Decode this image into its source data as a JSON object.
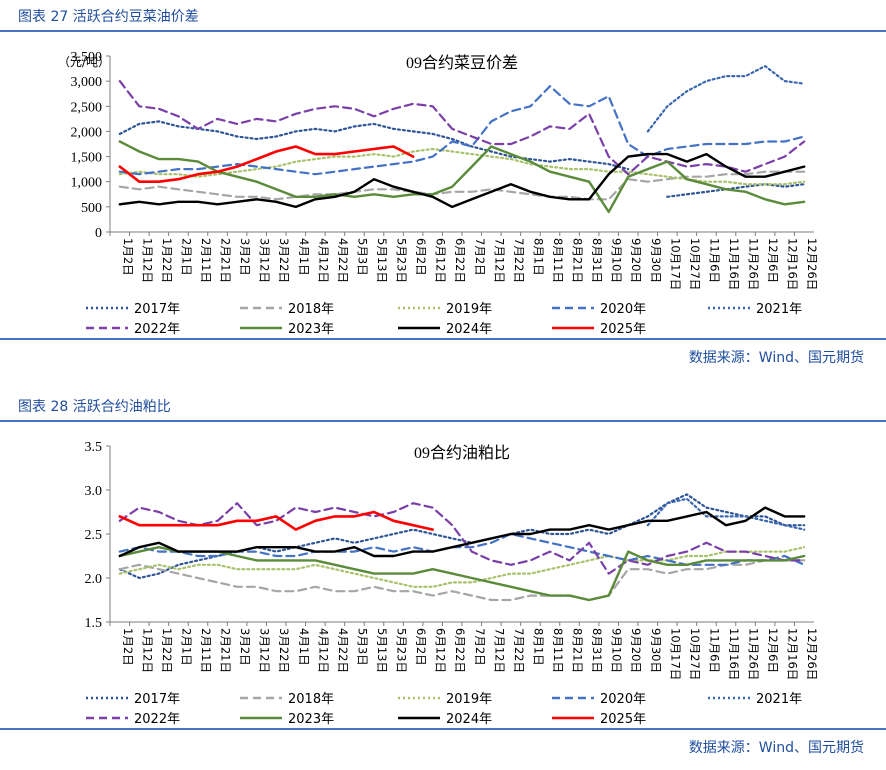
{
  "figures": [
    {
      "header": "图表 27  活跃合约豆菜油价差",
      "source": "数据来源：Wind、国元期货"
    },
    {
      "header": "图表 28  活跃合约油粕比",
      "source": "数据来源：Wind、国元期货"
    }
  ],
  "colors": {
    "2017": "#2E5597",
    "2018": "#A6A6A6",
    "2019": "#A9C16B",
    "2020": "#4472C4",
    "2021": "#3A66B0",
    "2022": "#7B3FA8",
    "2023": "#5A8B3A",
    "2024": "#000000",
    "2025": "#FF0000"
  },
  "chart_data": [
    {
      "type": "line",
      "title": "09合约菜豆价差",
      "ylabel": "（元/吨）",
      "ylim": [
        0,
        3500
      ],
      "yticks": [
        "0",
        "500",
        "1,000",
        "1,500",
        "2,000",
        "2,500",
        "3,000",
        "3,500"
      ],
      "categories": [
        "1月2日",
        "1月12日",
        "1月22日",
        "2月1日",
        "2月11日",
        "2月21日",
        "3月2日",
        "3月12日",
        "3月22日",
        "4月1日",
        "4月12日",
        "4月22日",
        "5月3日",
        "5月13日",
        "5月23日",
        "6月2日",
        "6月12日",
        "6月22日",
        "7月2日",
        "7月12日",
        "7月22日",
        "8月1日",
        "8月11日",
        "8月21日",
        "8月31日",
        "9月10日",
        "9月20日",
        "9月30日",
        "10月17日",
        "10月27日",
        "11月6日",
        "11月16日",
        "11月26日",
        "12月6日",
        "12月16日",
        "12月26日"
      ],
      "legend": [
        "2017年",
        "2018年",
        "2019年",
        "2020年",
        "2021年",
        "2022年",
        "2023年",
        "2024年",
        "2025年"
      ],
      "series": [
        {
          "name": "2017年",
          "style": "dot",
          "values": [
            1950,
            2150,
            2200,
            2100,
            2050,
            2000,
            1900,
            1850,
            1900,
            2000,
            2050,
            2000,
            2100,
            2150,
            2050,
            2000,
            1950,
            1850,
            1700,
            1600,
            1500,
            1450,
            1400,
            1450,
            1400,
            1350,
            1250,
            null,
            700,
            750,
            800,
            850,
            900,
            950,
            900,
            950
          ]
        },
        {
          "name": "2018年",
          "style": "dash",
          "values": [
            900,
            850,
            900,
            850,
            800,
            750,
            700,
            700,
            650,
            700,
            750,
            750,
            800,
            850,
            850,
            800,
            750,
            800,
            800,
            850,
            800,
            750,
            700,
            700,
            650,
            650,
            1050,
            1000,
            1050,
            1100,
            1100,
            1150,
            1150,
            1200,
            1200,
            1200
          ]
        },
        {
          "name": "2019年",
          "style": "dot",
          "values": [
            1150,
            1200,
            1150,
            1150,
            1100,
            1150,
            1200,
            1250,
            1300,
            1400,
            1450,
            1500,
            1500,
            1550,
            1500,
            1600,
            1650,
            1600,
            1550,
            1500,
            1450,
            1350,
            1300,
            1250,
            1250,
            1200,
            1200,
            1150,
            1100,
            1050,
            1000,
            1000,
            950,
            950,
            950,
            1000
          ]
        },
        {
          "name": "2020年",
          "style": "dash",
          "values": [
            1200,
            1150,
            1200,
            1250,
            1250,
            1300,
            1350,
            1300,
            1250,
            1200,
            1150,
            1200,
            1250,
            1300,
            1350,
            1400,
            1500,
            1800,
            1700,
            2200,
            2400,
            2500,
            2900,
            2550,
            2500,
            2700,
            1750,
            1500,
            1650,
            1700,
            1750,
            1750,
            1750,
            1800,
            1800,
            1900
          ]
        },
        {
          "name": "2021年",
          "style": "dot",
          "values": [
            null,
            null,
            null,
            null,
            null,
            null,
            null,
            null,
            null,
            null,
            null,
            null,
            null,
            null,
            null,
            null,
            null,
            null,
            null,
            null,
            null,
            null,
            null,
            null,
            null,
            null,
            null,
            2000,
            2500,
            2800,
            3000,
            3100,
            3100,
            3300,
            3000,
            2950
          ]
        },
        {
          "name": "2022年",
          "style": "dash",
          "values": [
            3000,
            2500,
            2450,
            2300,
            2050,
            2250,
            2150,
            2250,
            2200,
            2350,
            2450,
            2500,
            2450,
            2300,
            2450,
            2550,
            2500,
            2050,
            1900,
            1750,
            1750,
            1900,
            2100,
            2050,
            2350,
            1500,
            1150,
            1500,
            1400,
            1300,
            1350,
            1300,
            1200,
            1350,
            1500,
            1800
          ]
        },
        {
          "name": "2023年",
          "style": "solid",
          "values": [
            1800,
            1600,
            1450,
            1450,
            1400,
            1200,
            1100,
            1000,
            850,
            700,
            700,
            750,
            700,
            750,
            700,
            750,
            750,
            900,
            1300,
            1700,
            1550,
            1400,
            1200,
            1100,
            1000,
            400,
            1100,
            1250,
            1400,
            1050,
            950,
            850,
            800,
            650,
            550,
            600
          ]
        },
        {
          "name": "2024年",
          "style": "solid",
          "values": [
            550,
            600,
            550,
            600,
            600,
            550,
            600,
            650,
            600,
            500,
            650,
            700,
            800,
            1050,
            900,
            800,
            700,
            500,
            650,
            800,
            950,
            800,
            700,
            650,
            650,
            1150,
            1500,
            1550,
            1550,
            1400,
            1550,
            1300,
            1100,
            1100,
            1200,
            1300
          ]
        },
        {
          "name": "2025年",
          "style": "solid",
          "values": [
            1300,
            1000,
            1000,
            1050,
            1150,
            1200,
            1300,
            1450,
            1600,
            1700,
            1550,
            1550,
            1600,
            1650,
            1700,
            1500,
            null,
            null,
            null,
            null,
            null,
            null,
            null,
            null,
            null,
            null,
            null,
            null,
            null,
            null,
            null,
            null,
            null,
            null,
            null,
            null
          ]
        }
      ]
    },
    {
      "type": "line",
      "title": "09合约油粕比",
      "ylim": [
        1.5,
        3.5
      ],
      "yticks": [
        "1.5",
        "2.0",
        "2.5",
        "3.0",
        "3.5"
      ],
      "categories": [
        "1月2日",
        "1月12日",
        "1月22日",
        "2月1日",
        "2月11日",
        "2月21日",
        "3月2日",
        "3月12日",
        "3月22日",
        "4月1日",
        "4月12日",
        "4月22日",
        "5月3日",
        "5月13日",
        "5月23日",
        "6月2日",
        "6月12日",
        "6月22日",
        "7月2日",
        "7月12日",
        "7月22日",
        "8月1日",
        "8月11日",
        "8月21日",
        "8月31日",
        "9月10日",
        "9月20日",
        "9月30日",
        "10月17日",
        "10月27日",
        "11月6日",
        "11月16日",
        "11月26日",
        "12月6日",
        "12月16日",
        "12月26日"
      ],
      "legend": [
        "2017年",
        "2018年",
        "2019年",
        "2020年",
        "2021年",
        "2022年",
        "2023年",
        "2024年",
        "2025年"
      ],
      "series": [
        {
          "name": "2017年",
          "style": "dot",
          "values": [
            2.1,
            2.0,
            2.05,
            2.15,
            2.2,
            2.25,
            2.3,
            2.35,
            2.3,
            2.35,
            2.4,
            2.45,
            2.4,
            2.45,
            2.5,
            2.55,
            2.5,
            2.45,
            2.4,
            2.45,
            2.5,
            2.55,
            2.5,
            2.5,
            2.55,
            2.5,
            2.6,
            2.7,
            2.85,
            2.95,
            2.8,
            2.75,
            2.7,
            2.7,
            2.6,
            2.6
          ]
        },
        {
          "name": "2018年",
          "style": "dash",
          "values": [
            2.1,
            2.15,
            2.1,
            2.05,
            2.0,
            1.95,
            1.9,
            1.9,
            1.85,
            1.85,
            1.9,
            1.85,
            1.85,
            1.9,
            1.85,
            1.85,
            1.8,
            1.85,
            1.8,
            1.75,
            1.75,
            1.8,
            1.8,
            1.8,
            1.75,
            1.8,
            2.1,
            2.1,
            2.05,
            2.1,
            2.1,
            2.15,
            2.15,
            2.2,
            2.2,
            2.2
          ]
        },
        {
          "name": "2019年",
          "style": "dot",
          "values": [
            2.05,
            2.1,
            2.15,
            2.1,
            2.15,
            2.15,
            2.1,
            2.1,
            2.1,
            2.1,
            2.15,
            2.1,
            2.05,
            2.0,
            1.95,
            1.9,
            1.9,
            1.95,
            1.95,
            2.0,
            2.05,
            2.05,
            2.1,
            2.15,
            2.2,
            2.25,
            2.2,
            2.2,
            2.2,
            2.25,
            2.25,
            2.3,
            2.3,
            2.3,
            2.3,
            2.35
          ]
        },
        {
          "name": "2020年",
          "style": "dash",
          "values": [
            2.3,
            2.35,
            2.3,
            2.3,
            2.25,
            2.25,
            2.3,
            2.3,
            2.25,
            2.25,
            2.3,
            2.3,
            2.3,
            2.35,
            2.3,
            2.35,
            2.3,
            2.35,
            2.35,
            2.4,
            2.5,
            2.45,
            2.4,
            2.35,
            2.3,
            2.25,
            2.2,
            2.25,
            2.2,
            2.15,
            2.15,
            2.15,
            2.2,
            2.2,
            2.25,
            2.15
          ]
        },
        {
          "name": "2021年",
          "style": "dot",
          "values": [
            null,
            null,
            null,
            null,
            null,
            null,
            null,
            null,
            null,
            null,
            null,
            null,
            null,
            null,
            null,
            null,
            null,
            null,
            null,
            null,
            null,
            null,
            null,
            null,
            null,
            null,
            null,
            2.6,
            2.85,
            2.9,
            2.7,
            2.7,
            2.7,
            2.65,
            2.6,
            2.55
          ]
        },
        {
          "name": "2022年",
          "style": "dash",
          "values": [
            2.65,
            2.8,
            2.75,
            2.65,
            2.6,
            2.65,
            2.85,
            2.6,
            2.65,
            2.8,
            2.75,
            2.8,
            2.75,
            2.7,
            2.75,
            2.85,
            2.8,
            2.6,
            2.3,
            2.2,
            2.15,
            2.2,
            2.3,
            2.2,
            2.4,
            2.05,
            2.2,
            2.15,
            2.25,
            2.3,
            2.4,
            2.3,
            2.3,
            2.25,
            2.2,
            2.2
          ]
        },
        {
          "name": "2023年",
          "style": "solid",
          "values": [
            2.25,
            2.3,
            2.35,
            2.3,
            2.3,
            2.3,
            2.25,
            2.2,
            2.2,
            2.2,
            2.2,
            2.15,
            2.1,
            2.05,
            2.05,
            2.05,
            2.1,
            2.05,
            2.0,
            1.95,
            1.9,
            1.85,
            1.8,
            1.8,
            1.75,
            1.8,
            2.3,
            2.2,
            2.15,
            2.15,
            2.2,
            2.2,
            2.2,
            2.2,
            2.2,
            2.25
          ]
        },
        {
          "name": "2024年",
          "style": "solid",
          "values": [
            2.25,
            2.35,
            2.4,
            2.3,
            2.3,
            2.3,
            2.3,
            2.35,
            2.35,
            2.35,
            2.3,
            2.3,
            2.35,
            2.25,
            2.25,
            2.3,
            2.3,
            2.35,
            2.4,
            2.45,
            2.5,
            2.5,
            2.55,
            2.55,
            2.6,
            2.55,
            2.6,
            2.65,
            2.65,
            2.7,
            2.75,
            2.6,
            2.65,
            2.8,
            2.7,
            2.7
          ]
        },
        {
          "name": "2025年",
          "style": "solid",
          "values": [
            2.7,
            2.6,
            2.6,
            2.6,
            2.6,
            2.6,
            2.65,
            2.65,
            2.7,
            2.55,
            2.65,
            2.7,
            2.7,
            2.75,
            2.65,
            2.6,
            2.55,
            null,
            null,
            null,
            null,
            null,
            null,
            null,
            null,
            null,
            null,
            null,
            null,
            null,
            null,
            null,
            null,
            null,
            null,
            null
          ]
        }
      ]
    }
  ]
}
